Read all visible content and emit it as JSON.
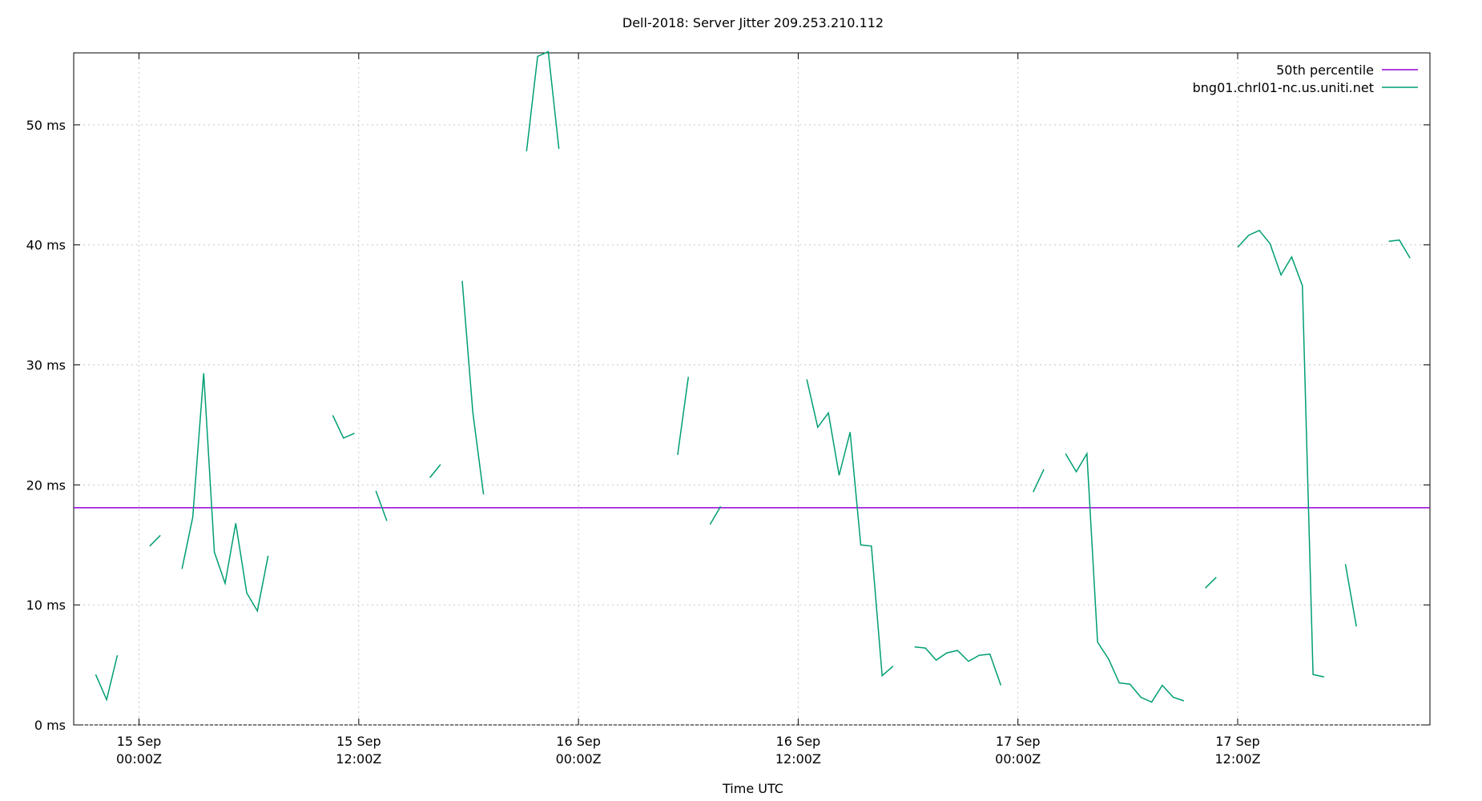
{
  "chart_data": {
    "type": "line",
    "title": "Dell-2018: Server Jitter 209.253.210.112",
    "x_label": "Time UTC",
    "xlim": [
      "14 Sep 20:26",
      "17 Sep 22:30"
    ],
    "xticks": [
      {
        "value": "15 Sep 00:00",
        "label": [
          "15 Sep",
          "00:00Z"
        ]
      },
      {
        "value": "15 Sep 12:00",
        "label": [
          "15 Sep",
          "12:00Z"
        ]
      },
      {
        "value": "16 Sep 00:00",
        "label": [
          "16 Sep",
          "00:00Z"
        ]
      },
      {
        "value": "16 Sep 12:00",
        "label": [
          "16 Sep",
          "12:00Z"
        ]
      },
      {
        "value": "17 Sep 00:00",
        "label": [
          "17 Sep",
          "00:00Z"
        ]
      },
      {
        "value": "17 Sep 12:00",
        "label": [
          "17 Sep",
          "12:00Z"
        ]
      }
    ],
    "ylim": [
      0,
      56
    ],
    "yticks": [
      {
        "value": 0,
        "label": "0 ms"
      },
      {
        "value": 10,
        "label": "10 ms"
      },
      {
        "value": 20,
        "label": "20 ms"
      },
      {
        "value": 30,
        "label": "30 ms"
      },
      {
        "value": 40,
        "label": "40 ms"
      },
      {
        "value": 50,
        "label": "50 ms"
      }
    ],
    "grid": true,
    "legend": "top-right",
    "series": [
      {
        "name": "50th percentile",
        "color": "#9400d3",
        "value": 18.1
      },
      {
        "name": "bng01.chrl01-nc.us.uniti.net",
        "color": "#009e73",
        "x": [
          "14 Sep 21:38",
          "14 Sep 22:14",
          "14 Sep 22:49",
          "14 Sep 23:25",
          "15 Sep 00:35",
          "15 Sep 01:10",
          "15 Sep 01:46",
          "15 Sep 02:21",
          "15 Sep 02:56",
          "15 Sep 03:32",
          "15 Sep 04:07",
          "15 Sep 04:42",
          "15 Sep 05:17",
          "15 Sep 05:53",
          "15 Sep 06:28",
          "15 Sep 07:03",
          "15 Sep 07:39",
          "15 Sep 10:35",
          "15 Sep 11:10",
          "15 Sep 11:46",
          "15 Sep 12:21",
          "15 Sep 12:56",
          "15 Sep 13:32",
          "15 Sep 14:07",
          "15 Sep 15:53",
          "15 Sep 16:28",
          "15 Sep 17:03",
          "15 Sep 17:39",
          "15 Sep 18:14",
          "15 Sep 18:49",
          "15 Sep 19:25",
          "15 Sep 21:10",
          "15 Sep 21:46",
          "15 Sep 22:21",
          "15 Sep 22:56",
          "15 Sep 23:32",
          "16 Sep 05:25",
          "16 Sep 06:00",
          "16 Sep 06:35",
          "16 Sep 07:11",
          "16 Sep 07:46",
          "16 Sep 08:21",
          "16 Sep 12:28",
          "16 Sep 13:04",
          "16 Sep 13:39",
          "16 Sep 14:14",
          "16 Sep 14:50",
          "16 Sep 15:25",
          "16 Sep 16:00",
          "16 Sep 16:35",
          "16 Sep 17:11",
          "16 Sep 17:46",
          "16 Sep 18:21",
          "16 Sep 18:57",
          "16 Sep 19:32",
          "16 Sep 20:07",
          "16 Sep 20:42",
          "16 Sep 21:18",
          "16 Sep 21:53",
          "16 Sep 22:28",
          "16 Sep 23:04",
          "16 Sep 23:39",
          "17 Sep 00:50",
          "17 Sep 01:25",
          "17 Sep 02:00",
          "17 Sep 02:36",
          "17 Sep 03:11",
          "17 Sep 03:46",
          "17 Sep 04:21",
          "17 Sep 04:57",
          "17 Sep 05:32",
          "17 Sep 06:07",
          "17 Sep 06:43",
          "17 Sep 07:18",
          "17 Sep 07:53",
          "17 Sep 08:29",
          "17 Sep 09:04",
          "17 Sep 09:39",
          "17 Sep 10:14",
          "17 Sep 10:50",
          "17 Sep 11:25",
          "17 Sep 12:00",
          "17 Sep 12:36",
          "17 Sep 13:11",
          "17 Sep 13:46",
          "17 Sep 14:22",
          "17 Sep 14:57",
          "17 Sep 15:32",
          "17 Sep 16:07",
          "17 Sep 16:43",
          "17 Sep 17:18",
          "17 Sep 17:53",
          "17 Sep 18:29",
          "17 Sep 19:04",
          "17 Sep 20:15",
          "17 Sep 20:50",
          "17 Sep 21:25"
        ],
        "values": [
          4.2,
          2.1,
          5.8,
          null,
          14.9,
          15.8,
          null,
          13,
          17.3,
          29.3,
          14.4,
          11.8,
          16.8,
          11,
          9.5,
          14.1,
          null,
          25.8,
          23.9,
          24.3,
          null,
          19.5,
          17,
          null,
          20.6,
          21.7,
          null,
          37,
          26,
          19.2,
          null,
          47.8,
          55.7,
          56.1,
          48,
          null,
          22.5,
          29,
          null,
          16.7,
          18.2,
          null,
          28.8,
          24.8,
          26,
          20.8,
          24.4,
          15,
          14.9,
          4.1,
          4.9,
          null,
          6.5,
          6.4,
          5.4,
          6,
          6.2,
          5.3,
          5.8,
          5.9,
          3.3,
          null,
          19.4,
          21.3,
          null,
          22.6,
          21.1,
          22.6,
          6.9,
          5.5,
          3.5,
          3.4,
          2.3,
          1.9,
          3.3,
          2.3,
          2,
          null,
          11.4,
          12.3,
          null,
          39.8,
          40.8,
          41.2,
          40.1,
          37.5,
          39,
          36.6,
          4.2,
          4,
          null,
          13.4,
          8.2,
          null,
          40.3,
          40.4,
          38.9
        ]
      }
    ]
  }
}
